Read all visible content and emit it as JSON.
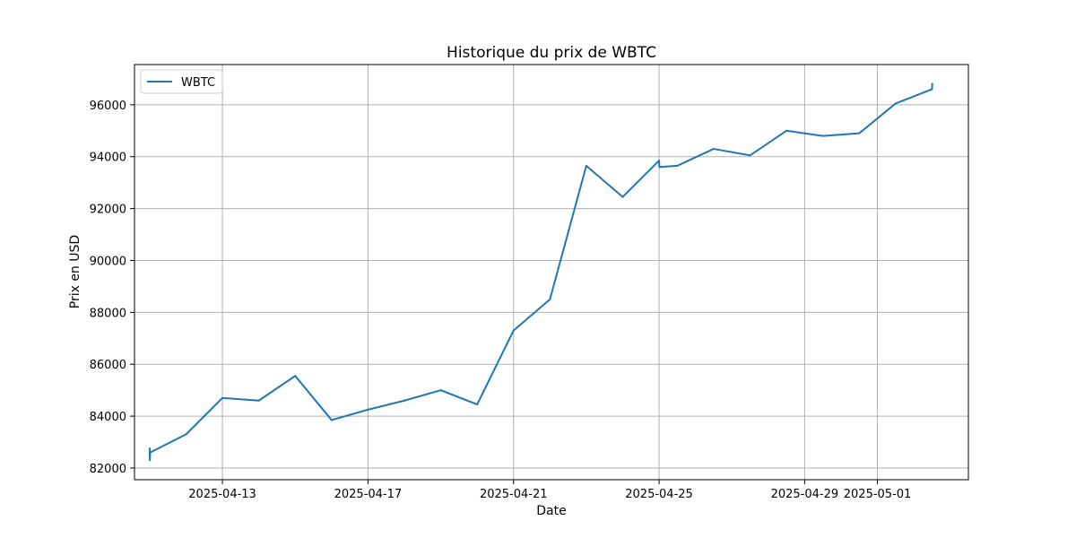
{
  "chart_data": {
    "type": "line",
    "title": "Historique du prix de WBTC",
    "xlabel": "Date",
    "ylabel": "Prix en USD",
    "x_tick_labels": [
      "2025-04-13",
      "2025-04-17",
      "2025-04-21",
      "2025-04-25",
      "2025-04-29",
      "2025-05-01"
    ],
    "x_tick_dates": [
      "2025-04-13",
      "2025-04-17",
      "2025-04-21",
      "2025-04-25",
      "2025-04-29",
      "2025-05-01"
    ],
    "y_ticks": [
      82000,
      84000,
      86000,
      88000,
      90000,
      92000,
      94000,
      96000
    ],
    "xlim": [
      "2025-04-10T14:00",
      "2025-05-03T12:00"
    ],
    "ylim": [
      81550,
      97550
    ],
    "grid": true,
    "legend_position": "top-left",
    "series": [
      {
        "name": "WBTC",
        "color": "#1f77b4",
        "points": [
          {
            "x": "2025-04-11T00:00",
            "y": 82750
          },
          {
            "x": "2025-04-11T00:10",
            "y": 82300
          },
          {
            "x": "2025-04-11T00:20",
            "y": 82600
          },
          {
            "x": "2025-04-12T00:00",
            "y": 83300
          },
          {
            "x": "2025-04-13T00:00",
            "y": 84700
          },
          {
            "x": "2025-04-14T00:00",
            "y": 84600
          },
          {
            "x": "2025-04-15T00:00",
            "y": 85550
          },
          {
            "x": "2025-04-16T00:00",
            "y": 83850
          },
          {
            "x": "2025-04-17T00:00",
            "y": 84250
          },
          {
            "x": "2025-04-18T00:00",
            "y": 84600
          },
          {
            "x": "2025-04-19T00:00",
            "y": 85000
          },
          {
            "x": "2025-04-20T00:00",
            "y": 84450
          },
          {
            "x": "2025-04-21T00:00",
            "y": 87300
          },
          {
            "x": "2025-04-22T00:00",
            "y": 88500
          },
          {
            "x": "2025-04-23T00:00",
            "y": 93650
          },
          {
            "x": "2025-04-24T00:00",
            "y": 92450
          },
          {
            "x": "2025-04-25T00:00",
            "y": 93850
          },
          {
            "x": "2025-04-25T00:10",
            "y": 93600
          },
          {
            "x": "2025-04-25T12:00",
            "y": 93650
          },
          {
            "x": "2025-04-26T12:00",
            "y": 94300
          },
          {
            "x": "2025-04-27T12:00",
            "y": 94050
          },
          {
            "x": "2025-04-28T12:00",
            "y": 95000
          },
          {
            "x": "2025-04-29T12:00",
            "y": 94800
          },
          {
            "x": "2025-04-30T12:00",
            "y": 94900
          },
          {
            "x": "2025-05-01T12:00",
            "y": 96050
          },
          {
            "x": "2025-05-02T12:00",
            "y": 96600
          },
          {
            "x": "2025-05-02T12:10",
            "y": 96800
          }
        ]
      }
    ]
  }
}
